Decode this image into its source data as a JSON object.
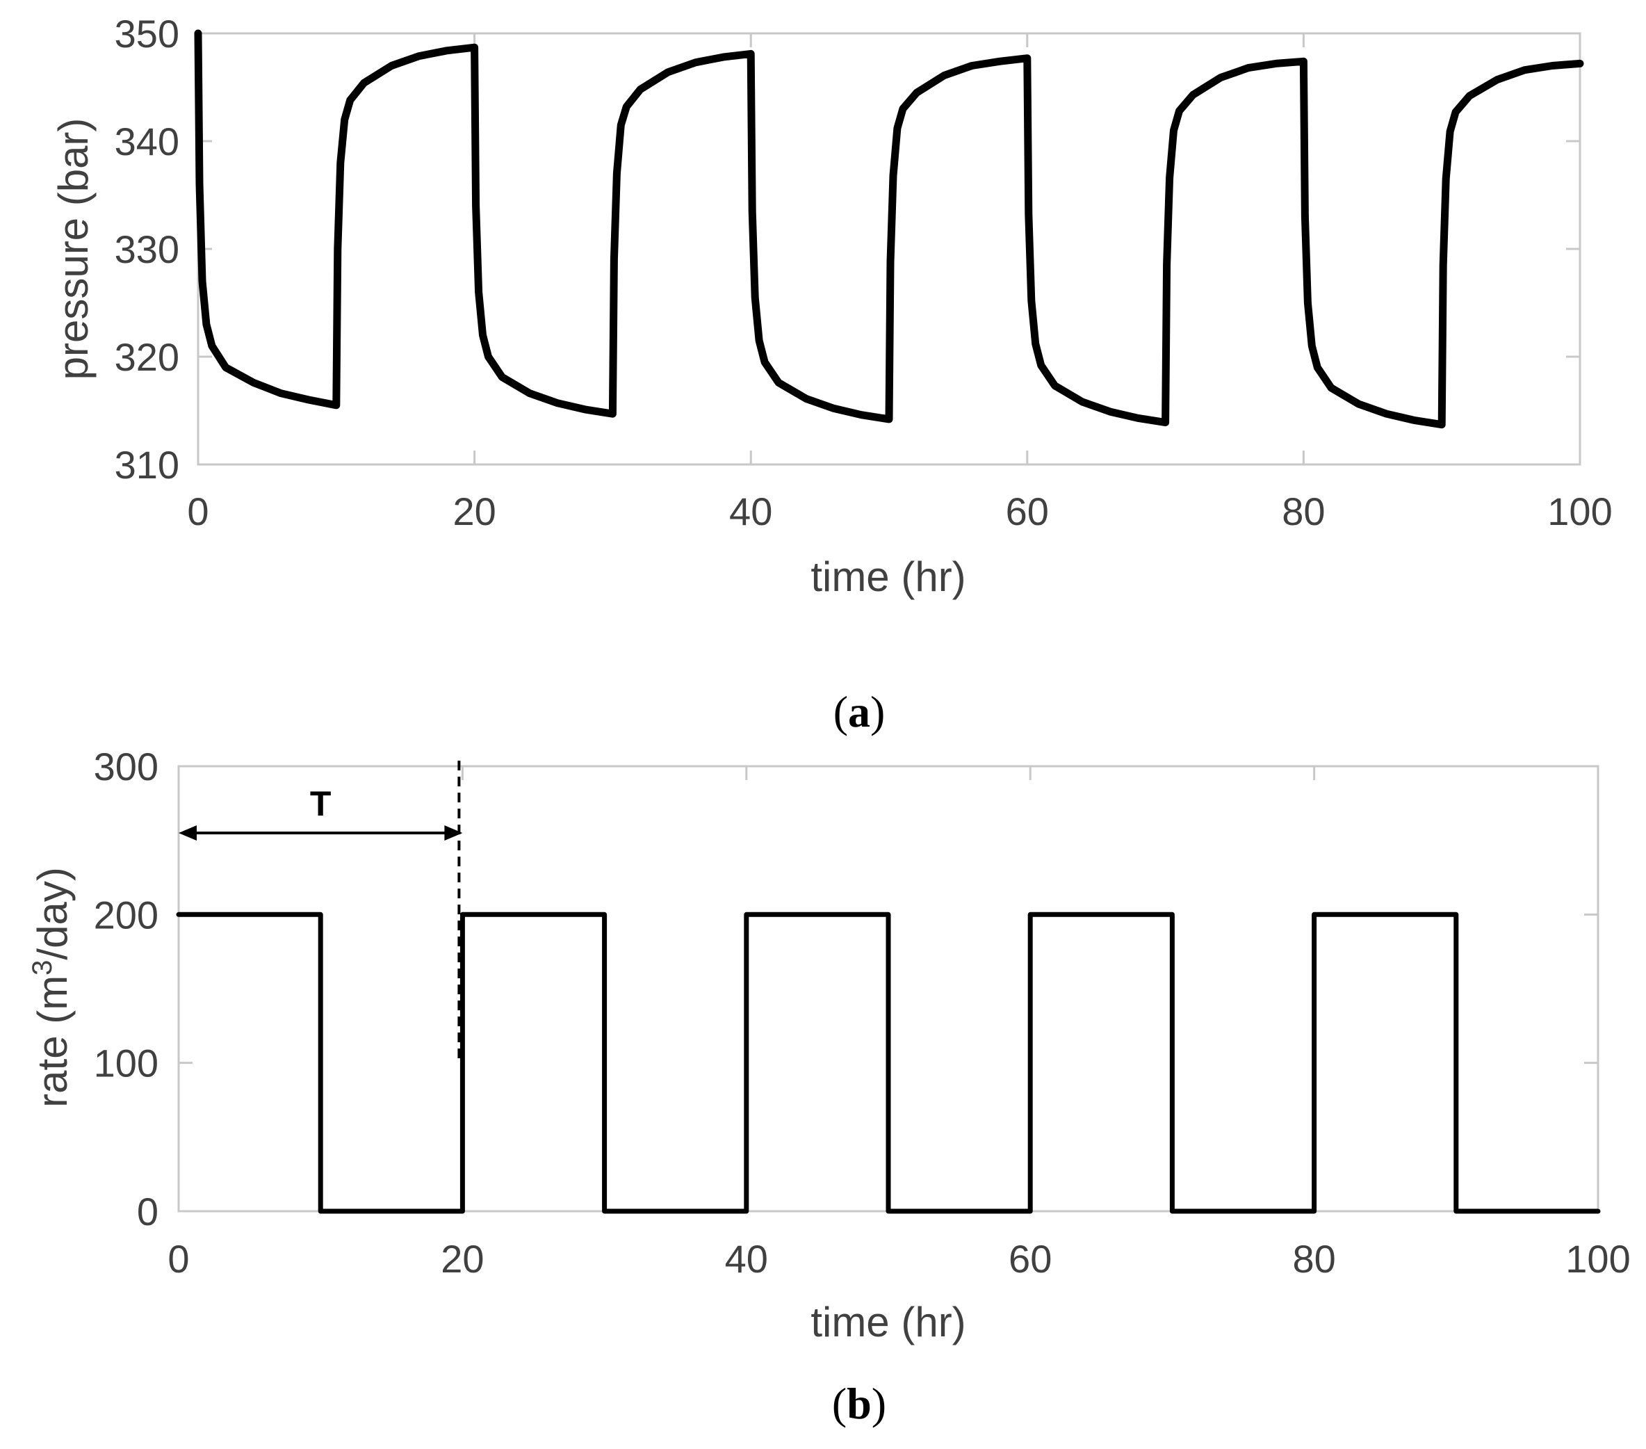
{
  "chart_data": [
    {
      "type": "line",
      "panel": "a",
      "caption_letter": "a",
      "xlabel": "time (hr)",
      "ylabel": "pressure (bar)",
      "xlim": [
        0,
        100
      ],
      "ylim": [
        310,
        350
      ],
      "xticks": [
        "0",
        "20",
        "40",
        "60",
        "80",
        "100"
      ],
      "yticks": [
        "310",
        "320",
        "330",
        "340",
        "350"
      ],
      "grid": false,
      "series": [
        {
          "name": "pressure",
          "cycle_period_hr": 20,
          "drawdown_end_pressures": [
            315.5,
            314.7,
            314.2,
            313.9,
            313.7
          ],
          "buildup_end_pressures": [
            348.7,
            348.1,
            347.7,
            347.4,
            347.2
          ],
          "x": [
            0,
            0.1,
            0.3,
            0.6,
            1,
            2,
            4,
            6,
            8,
            10,
            10.1,
            10.3,
            10.6,
            11,
            12,
            14,
            16,
            18,
            20,
            20.1,
            20.3,
            20.6,
            21,
            22,
            24,
            26,
            28,
            30,
            30.1,
            30.3,
            30.6,
            31,
            32,
            34,
            36,
            38,
            40,
            40.1,
            40.3,
            40.6,
            41,
            42,
            44,
            46,
            48,
            50,
            50.1,
            50.3,
            50.6,
            51,
            52,
            54,
            56,
            58,
            60,
            60.1,
            60.3,
            60.6,
            61,
            62,
            64,
            66,
            68,
            70,
            70.1,
            70.3,
            70.6,
            71,
            72,
            74,
            76,
            78,
            80,
            80.1,
            80.3,
            80.6,
            81,
            82,
            84,
            86,
            88,
            90,
            90.1,
            90.3,
            90.6,
            91,
            92,
            94,
            96,
            98,
            100
          ],
          "y": [
            350,
            336,
            327,
            323,
            321,
            319,
            317.6,
            316.6,
            316,
            315.5,
            330,
            338,
            342,
            343.8,
            345.4,
            347,
            347.9,
            348.4,
            348.7,
            334,
            326,
            322,
            320,
            318.1,
            316.6,
            315.7,
            315.1,
            314.7,
            329,
            337,
            341.5,
            343.2,
            344.8,
            346.4,
            347.3,
            347.8,
            348.1,
            333.5,
            325.5,
            321.5,
            319.5,
            317.6,
            316.1,
            315.2,
            314.6,
            314.2,
            328.8,
            336.8,
            341.2,
            343,
            344.5,
            346.1,
            347,
            347.4,
            347.7,
            333.2,
            325.2,
            321.2,
            319.2,
            317.3,
            315.8,
            314.9,
            314.3,
            313.9,
            328.6,
            336.6,
            341,
            342.8,
            344.3,
            345.9,
            346.8,
            347.2,
            347.4,
            333,
            325,
            321,
            319,
            317.1,
            315.6,
            314.7,
            314.1,
            313.7,
            328.5,
            336.5,
            340.9,
            342.7,
            344.2,
            345.7,
            346.6,
            347,
            347.2
          ]
        }
      ]
    },
    {
      "type": "line",
      "panel": "b",
      "caption_letter": "b",
      "xlabel": "time (hr)",
      "ylabel_prefix": "rate (m",
      "ylabel_sup": "3",
      "ylabel_suffix": "/day)",
      "xlim": [
        0,
        100
      ],
      "ylim": [
        0,
        300
      ],
      "xticks": [
        "0",
        "20",
        "40",
        "60",
        "80",
        "100"
      ],
      "yticks": [
        "0",
        "100",
        "200",
        "300"
      ],
      "grid": false,
      "annotation": {
        "label": "T",
        "from_x": 0,
        "to_x": 20,
        "at_y": 255,
        "dashed_line_x": 20,
        "dashed_y_range": [
          100,
          300
        ]
      },
      "series": [
        {
          "name": "rate",
          "x": [
            0,
            10,
            10,
            20,
            20,
            30,
            30,
            40,
            40,
            50,
            50,
            60,
            60,
            70,
            70,
            80,
            80,
            90,
            90,
            100
          ],
          "y": [
            200,
            200,
            0,
            0,
            200,
            200,
            0,
            0,
            200,
            200,
            0,
            0,
            200,
            200,
            0,
            0,
            200,
            200,
            0,
            0
          ]
        }
      ]
    }
  ]
}
